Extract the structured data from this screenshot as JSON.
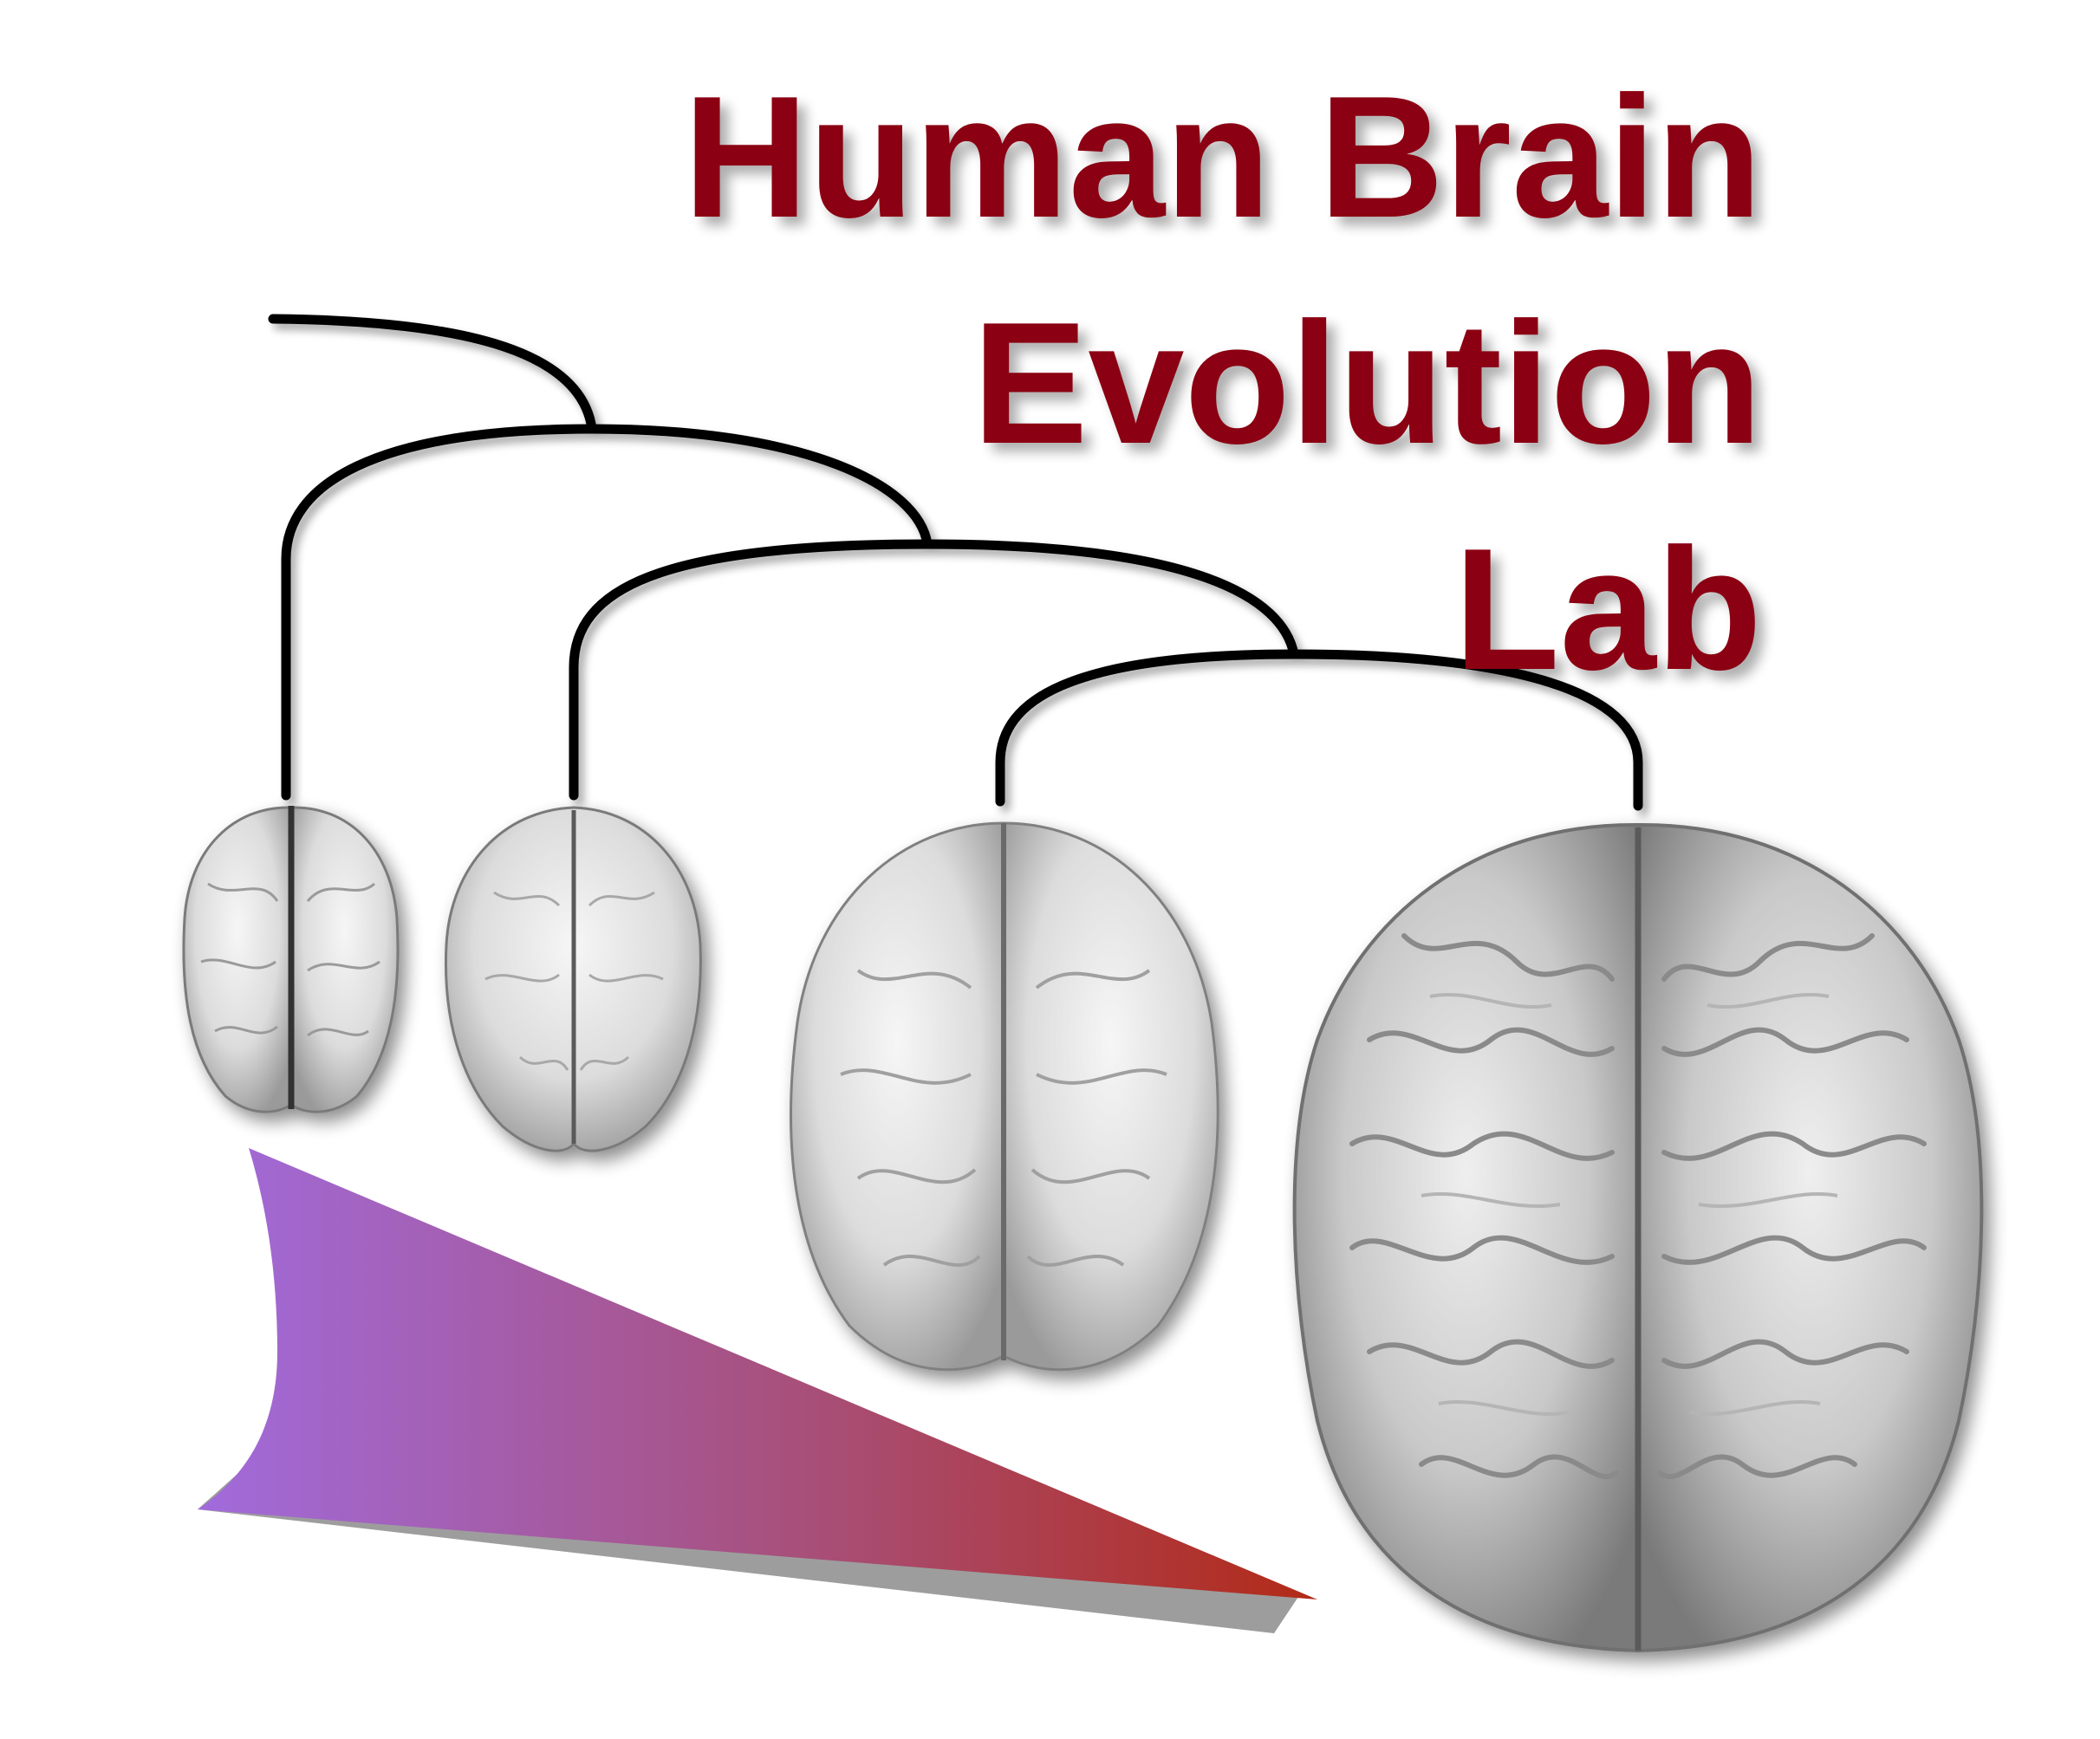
{
  "logo": {
    "title_lines": [
      "Human Brain",
      "Evolution",
      "Lab"
    ],
    "title_color": "#8b0012",
    "tree_color": "#000000",
    "brains": [
      "brain-1-icon",
      "brain-2-icon",
      "brain-3-icon",
      "brain-4-icon"
    ],
    "wedge_gradient": [
      "#a16bdc",
      "#b22a16"
    ]
  }
}
